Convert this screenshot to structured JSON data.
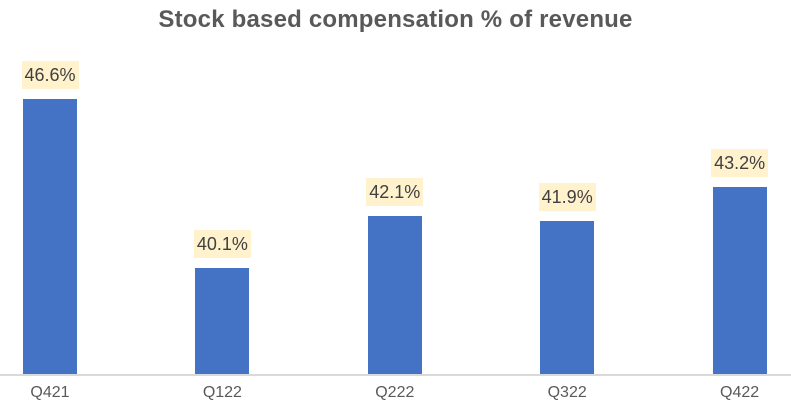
{
  "chart_data": {
    "type": "bar",
    "title": "Stock based compensation % of revenue",
    "categories": [
      "Q421",
      "Q122",
      "Q222",
      "Q322",
      "Q422"
    ],
    "values": [
      46.6,
      40.1,
      42.1,
      41.9,
      43.2
    ],
    "data_labels": [
      "46.6%",
      "40.1%",
      "42.1%",
      "41.9%",
      "43.2%"
    ],
    "xlabel": "",
    "ylabel": "",
    "ylim": [
      36,
      48
    ],
    "grid": false,
    "legend": false,
    "y_axis_visible": false,
    "data_labels_visible": true
  },
  "colors": {
    "bar": "#4472C4",
    "data_label_background": "#FFF2CC",
    "data_label_text": "#404040",
    "axis_text": "#595959",
    "axis_line": "#D9D9D9",
    "title_text": "#595959",
    "background": "#FFFFFF"
  }
}
